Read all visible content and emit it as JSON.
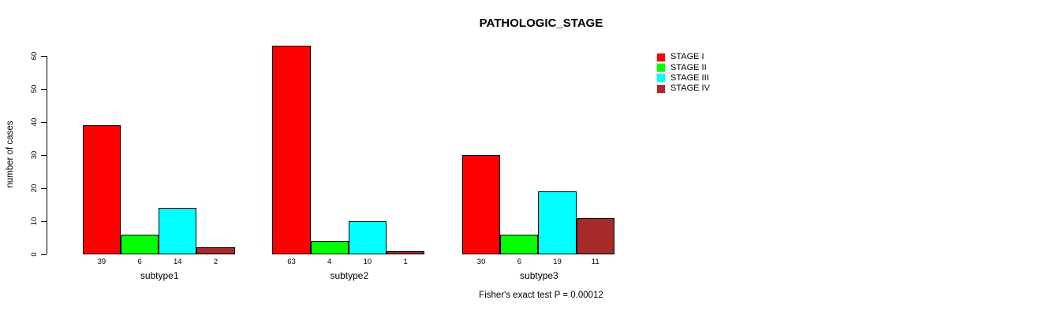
{
  "title": "PATHOLOGIC_STAGE",
  "chart_data": {
    "type": "bar",
    "title": "PATHOLOGIC_STAGE",
    "xlabel": "",
    "ylabel": "number of cases",
    "categories": [
      "subtype1",
      "subtype2",
      "subtype3"
    ],
    "series": [
      {
        "name": "STAGE I",
        "color": "#ff0000",
        "values": [
          39,
          63,
          30
        ]
      },
      {
        "name": "STAGE II",
        "color": "#00ff00",
        "values": [
          6,
          4,
          6
        ]
      },
      {
        "name": "STAGE III",
        "color": "#00ffff",
        "values": [
          14,
          10,
          19
        ]
      },
      {
        "name": "STAGE IV",
        "color": "#a52a2a",
        "values": [
          2,
          1,
          11
        ]
      }
    ],
    "bar_value_labels": [
      [
        "39",
        "6",
        "14",
        "2"
      ],
      [
        "63",
        "4",
        "10",
        "1"
      ],
      [
        "30",
        "6",
        "19",
        "11"
      ]
    ],
    "yticks": [
      0,
      10,
      20,
      30,
      40,
      50,
      60
    ],
    "ylim": [
      0,
      63
    ],
    "grid": false,
    "legend_position": "top-right",
    "annotation": "Fisher's exact test P = 0.00012"
  }
}
